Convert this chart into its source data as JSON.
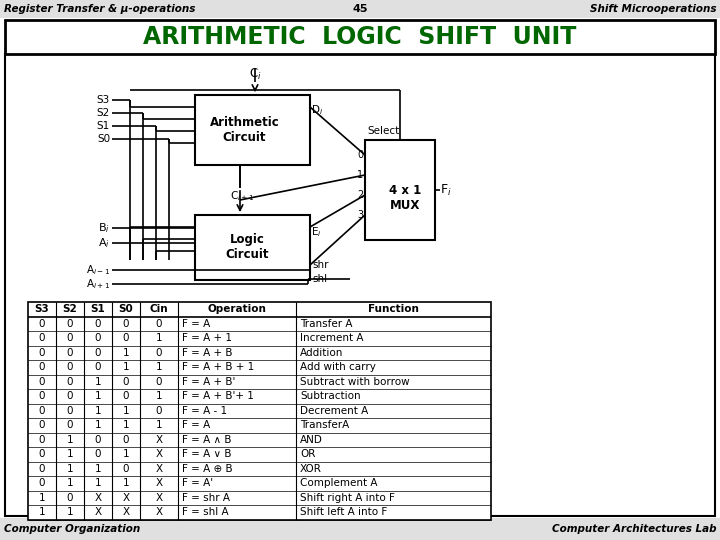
{
  "title": "ARITHMETIC  LOGIC  SHIFT  UNIT",
  "header_left": "Register Transfer & μ-operations",
  "header_center": "45",
  "header_right": "Shift Microoperations",
  "footer_left": "Computer Organization",
  "footer_right": "Computer Architectures Lab",
  "title_color": "#006600",
  "bg_color": "#ffffff",
  "table_data": {
    "headers": [
      "S3",
      "S2",
      "S1",
      "S0",
      "Cin",
      "Operation",
      "Function"
    ],
    "rows": [
      [
        "0",
        "0",
        "0",
        "0",
        "0",
        "F = A",
        "Transfer A"
      ],
      [
        "0",
        "0",
        "0",
        "0",
        "1",
        "F = A + 1",
        "Increment A"
      ],
      [
        "0",
        "0",
        "0",
        "1",
        "0",
        "F = A + B",
        "Addition"
      ],
      [
        "0",
        "0",
        "0",
        "1",
        "1",
        "F = A + B + 1",
        "Add with carry"
      ],
      [
        "0",
        "0",
        "1",
        "0",
        "0",
        "F = A + B'",
        "Subtract with borrow"
      ],
      [
        "0",
        "0",
        "1",
        "0",
        "1",
        "F = A + B'+ 1",
        "Subtraction"
      ],
      [
        "0",
        "0",
        "1",
        "1",
        "0",
        "F = A - 1",
        "Decrement A"
      ],
      [
        "0",
        "0",
        "1",
        "1",
        "1",
        "F = A",
        "TransferA"
      ],
      [
        "0",
        "1",
        "0",
        "0",
        "X",
        "F = A ∧ B",
        "AND"
      ],
      [
        "0",
        "1",
        "0",
        "1",
        "X",
        "F = A ∨ B",
        "OR"
      ],
      [
        "0",
        "1",
        "1",
        "0",
        "X",
        "F = A ⊕ B",
        "XOR"
      ],
      [
        "0",
        "1",
        "1",
        "1",
        "X",
        "F = A'",
        "Complement A"
      ],
      [
        "1",
        "0",
        "X",
        "X",
        "X",
        "F = shr A",
        "Shift right A into F"
      ],
      [
        "1",
        "1",
        "X",
        "X",
        "X",
        "F = shl A",
        "Shift left A into F"
      ]
    ]
  }
}
